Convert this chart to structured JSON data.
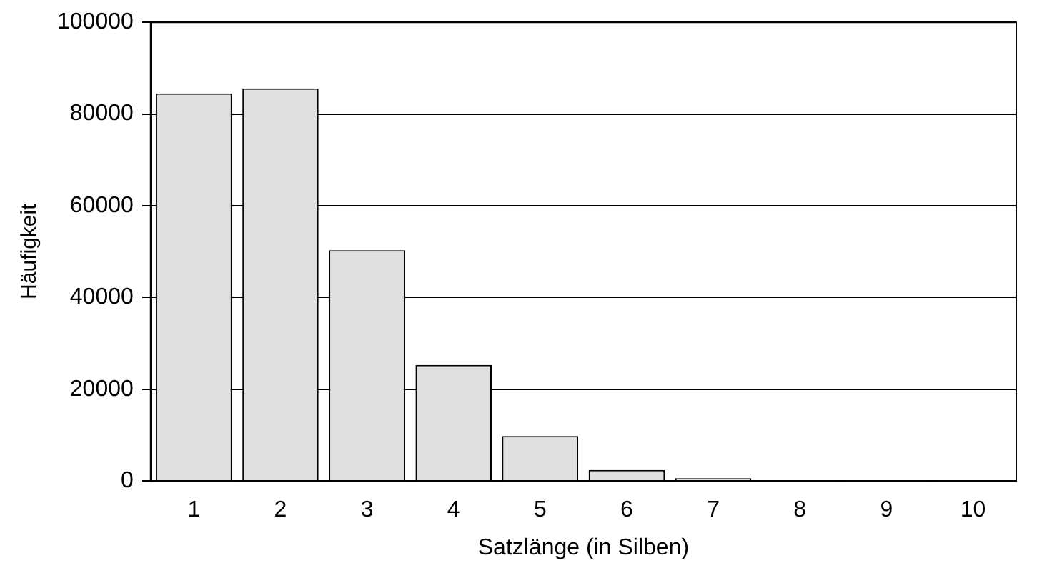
{
  "chart_data": {
    "type": "bar",
    "xlabel": "Satzlänge (in Silben)",
    "ylabel": "Häufigkeit",
    "categories": [
      "1",
      "2",
      "3",
      "4",
      "5",
      "6",
      "7",
      "8",
      "9",
      "10"
    ],
    "values": [
      84500,
      85600,
      50300,
      25300,
      9800,
      2400,
      600,
      200,
      100,
      100
    ],
    "color": "#e0e0e0",
    "ylim": [
      0,
      100000
    ],
    "yticks": [
      0,
      20000,
      40000,
      60000,
      80000,
      100000
    ],
    "grid": "y",
    "legend": false
  }
}
